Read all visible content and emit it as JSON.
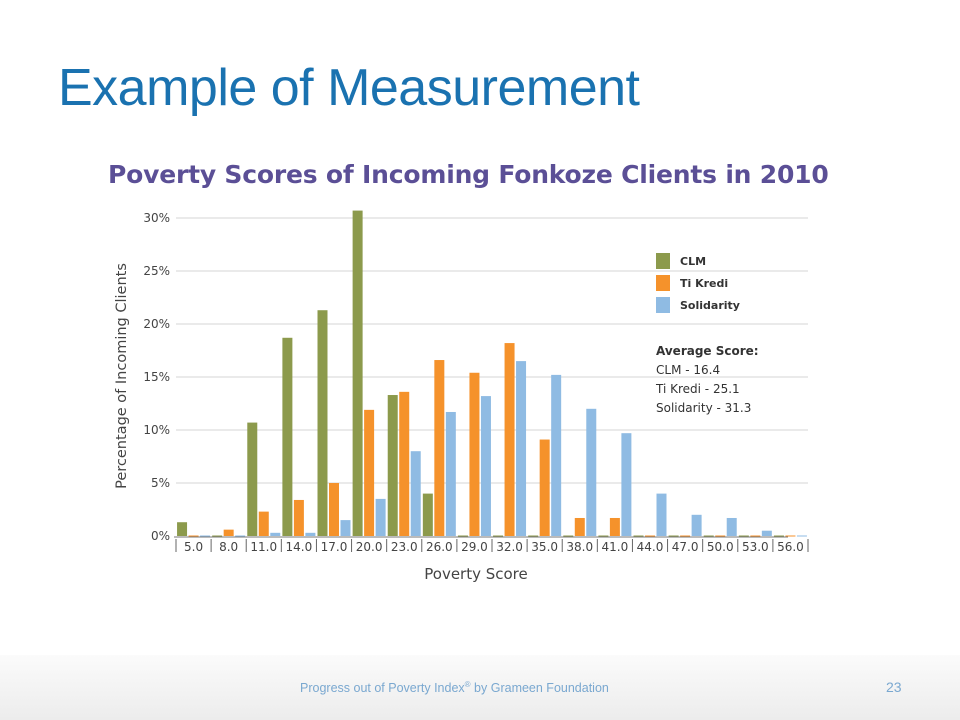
{
  "slide": {
    "title": "Example of Measurement",
    "footer_text": "Progress out of Poverty Index",
    "footer_mark": "®",
    "footer_suffix": " by Grameen Foundation",
    "page_number": "23"
  },
  "chart_data": {
    "type": "bar",
    "title": "Poverty Scores of Incoming Fonkoze Clients in 2010",
    "xlabel": "Poverty Score",
    "ylabel": "Percentage of Incoming Clients",
    "ylim": [
      0,
      30
    ],
    "y_ticks": [
      "0%",
      "5%",
      "10%",
      "15%",
      "20%",
      "25%",
      "30%"
    ],
    "grid": true,
    "legend_position": "top-right",
    "categories": [
      "5.0",
      "8.0",
      "11.0",
      "14.0",
      "17.0",
      "20.0",
      "23.0",
      "26.0",
      "29.0",
      "32.0",
      "35.0",
      "38.0",
      "41.0",
      "44.0",
      "47.0",
      "50.0",
      "53.0",
      "56.0"
    ],
    "series": [
      {
        "name": "CLM",
        "color": "#8c9a4c",
        "values": [
          1.3,
          0,
          10.7,
          18.7,
          21.3,
          30.7,
          13.3,
          4.0,
          0,
          0,
          0,
          0,
          0,
          0,
          0,
          0,
          0,
          0
        ]
      },
      {
        "name": "Ti Kredi",
        "color": "#f5922b",
        "values": [
          0,
          0.6,
          2.3,
          3.4,
          5.0,
          11.9,
          13.6,
          16.6,
          15.4,
          18.2,
          9.1,
          1.7,
          1.7,
          0,
          0,
          0,
          0,
          0
        ]
      },
      {
        "name": "Solidarity",
        "color": "#8fbbe3",
        "values": [
          0,
          0,
          0.3,
          0.3,
          1.5,
          3.5,
          8.0,
          11.7,
          13.2,
          16.5,
          15.2,
          12.0,
          9.7,
          4.0,
          2.0,
          1.7,
          0.5,
          0
        ]
      }
    ],
    "annotation": {
      "heading": "Average Score:",
      "lines": [
        "CLM - 16.4",
        "Ti Kredi - 25.1",
        "Solidarity - 31.3"
      ]
    }
  }
}
